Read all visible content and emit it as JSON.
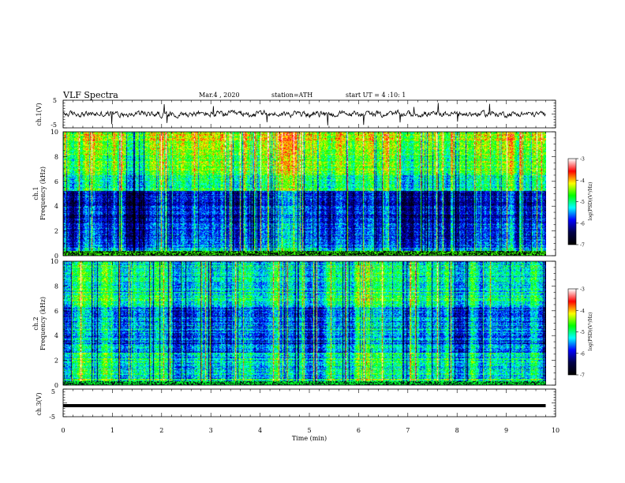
{
  "header": {
    "title": "VLF Spectra",
    "date": "Mar.4 , 2020",
    "station": "station=ATH",
    "start": "start UT = 4 :10: 1"
  },
  "chart_data": [
    {
      "type": "line",
      "panel": "ch1-waveform",
      "ylabel": "ch.1(V)",
      "yticks": [
        "5",
        "-5"
      ],
      "ylim": [
        -5,
        5
      ],
      "xlim": [
        0,
        10
      ],
      "x_end": 9.8
    },
    {
      "type": "heatmap",
      "panel": "ch1-spectrogram",
      "ylabel_top": "ch.1",
      "ylabel": "Frequency (kHz)",
      "yticks": [
        "0",
        "2",
        "4",
        "6",
        "8",
        "10"
      ],
      "ylim": [
        0,
        10
      ],
      "xlim": [
        0,
        10
      ],
      "x_end": 9.8,
      "colorbar": {
        "label": "log(PSD)(V²/Hz)",
        "ticks": [
          "-3",
          "-4",
          "-5",
          "-6",
          "-7"
        ],
        "range": [
          -7,
          -3
        ]
      }
    },
    {
      "type": "heatmap",
      "panel": "ch2-spectrogram",
      "ylabel_top": "ch.2",
      "ylabel": "Frequency (kHz)",
      "yticks": [
        "0",
        "2",
        "4",
        "6",
        "8",
        "10"
      ],
      "ylim": [
        0,
        10
      ],
      "xlim": [
        0,
        10
      ],
      "x_end": 9.8,
      "colorbar": {
        "label": "log(PSD)(V²/Hz)",
        "ticks": [
          "-3",
          "-4",
          "-5",
          "-6",
          "-7"
        ],
        "range": [
          -7,
          -3
        ]
      }
    },
    {
      "type": "line",
      "panel": "ch3-waveform",
      "ylabel": "ch.3(V)",
      "yticks": [
        "5",
        "-5"
      ],
      "ylim": [
        -5,
        5
      ],
      "xlim": [
        0,
        10
      ],
      "x_end": 9.8,
      "level": -1,
      "xlabel": "Time (min)",
      "xticks": [
        "0",
        "1",
        "2",
        "3",
        "4",
        "5",
        "6",
        "7",
        "8",
        "9",
        "10"
      ]
    }
  ],
  "colors": {
    "colormap": [
      "#000000",
      "#00004a",
      "#0000ff",
      "#00ffff",
      "#00ff00",
      "#ffff00",
      "#ff0000",
      "#ffffff"
    ]
  }
}
